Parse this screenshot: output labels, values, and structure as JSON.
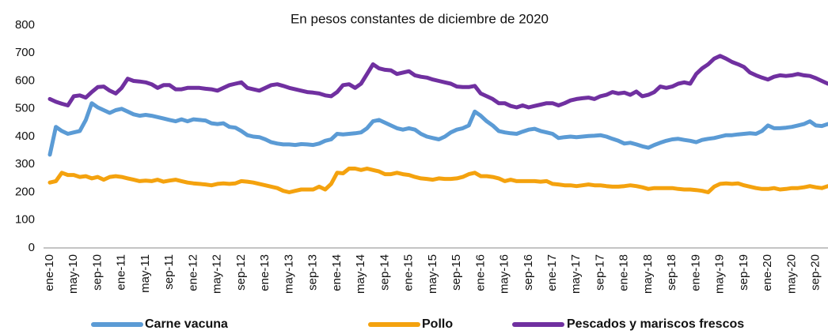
{
  "chart_data": {
    "type": "line",
    "subtitle": "En pesos constantes de diciembre de 2020",
    "categories": [
      "ene-10",
      null,
      null,
      null,
      "may-10",
      null,
      null,
      null,
      "sep-10",
      null,
      null,
      null,
      "ene-11",
      null,
      null,
      null,
      "may-11",
      null,
      null,
      null,
      "sep-11",
      null,
      null,
      null,
      "ene-12",
      null,
      null,
      null,
      "may-12",
      null,
      null,
      null,
      "sep-12",
      null,
      null,
      null,
      "ene-13",
      null,
      null,
      null,
      "may-13",
      null,
      null,
      null,
      "sep-13",
      null,
      null,
      null,
      "ene-14",
      null,
      null,
      null,
      "may-14",
      null,
      null,
      null,
      "sep-14",
      null,
      null,
      null,
      "ene-15",
      null,
      null,
      null,
      "may-15",
      null,
      null,
      null,
      "sep-15",
      null,
      null,
      null,
      "ene-16",
      null,
      null,
      null,
      "may-16",
      null,
      null,
      null,
      "sep-16",
      null,
      null,
      null,
      "ene-17",
      null,
      null,
      null,
      "may-17",
      null,
      null,
      null,
      "sep-17",
      null,
      null,
      null,
      "ene-18",
      null,
      null,
      null,
      "may-18",
      null,
      null,
      null,
      "sep-18",
      null,
      null,
      null,
      "ene-19",
      null,
      null,
      null,
      "may-19",
      null,
      null,
      null,
      "sep-19",
      null,
      null,
      null,
      "ene-20",
      null,
      null,
      null,
      "may-20",
      null,
      null,
      null,
      "sep-20",
      null,
      null
    ],
    "series": [
      {
        "name": "Carne vacuna",
        "color": "#5b9bd5",
        "values": [
          335,
          435,
          420,
          410,
          415,
          420,
          460,
          520,
          505,
          495,
          485,
          495,
          500,
          490,
          480,
          475,
          478,
          475,
          470,
          465,
          460,
          455,
          462,
          455,
          462,
          460,
          458,
          448,
          445,
          448,
          435,
          432,
          420,
          405,
          400,
          398,
          390,
          380,
          375,
          372,
          372,
          370,
          373,
          372,
          370,
          375,
          385,
          390,
          410,
          408,
          410,
          412,
          415,
          430,
          455,
          460,
          450,
          440,
          430,
          425,
          430,
          425,
          410,
          400,
          395,
          390,
          400,
          415,
          425,
          430,
          440,
          490,
          475,
          455,
          440,
          420,
          415,
          412,
          410,
          418,
          425,
          428,
          420,
          415,
          410,
          395,
          398,
          400,
          398,
          400,
          402,
          403,
          405,
          400,
          392,
          385,
          375,
          378,
          372,
          365,
          360,
          370,
          378,
          385,
          390,
          392,
          388,
          385,
          380,
          388,
          392,
          395,
          400,
          405,
          405,
          408,
          410,
          412,
          410,
          420,
          440,
          430,
          430,
          432,
          435,
          440,
          445,
          455,
          440,
          438,
          445
        ]
      },
      {
        "name": "Pollo",
        "color": "#f4a20e",
        "values": [
          235,
          240,
          270,
          262,
          262,
          255,
          258,
          250,
          255,
          245,
          255,
          258,
          255,
          250,
          245,
          240,
          242,
          240,
          245,
          238,
          242,
          245,
          240,
          235,
          232,
          230,
          228,
          225,
          230,
          232,
          230,
          232,
          240,
          238,
          235,
          230,
          225,
          220,
          215,
          205,
          200,
          205,
          210,
          210,
          210,
          220,
          210,
          230,
          270,
          268,
          285,
          285,
          280,
          285,
          280,
          275,
          265,
          265,
          270,
          265,
          262,
          255,
          250,
          248,
          245,
          250,
          248,
          248,
          250,
          255,
          265,
          270,
          258,
          258,
          255,
          250,
          240,
          245,
          240,
          240,
          240,
          240,
          238,
          240,
          230,
          228,
          225,
          225,
          222,
          225,
          228,
          225,
          225,
          222,
          220,
          220,
          222,
          225,
          222,
          218,
          212,
          215,
          215,
          215,
          215,
          212,
          210,
          210,
          208,
          205,
          200,
          220,
          230,
          232,
          230,
          232,
          225,
          220,
          215,
          212,
          212,
          215,
          210,
          212,
          215,
          215,
          218,
          222,
          218,
          215,
          222
        ]
      },
      {
        "name": "Pescados y mariscos frescos",
        "color": "#7030a0",
        "values": [
          535,
          525,
          518,
          512,
          545,
          548,
          540,
          560,
          578,
          580,
          565,
          555,
          575,
          608,
          600,
          598,
          595,
          588,
          575,
          585,
          585,
          570,
          570,
          575,
          575,
          575,
          572,
          570,
          565,
          575,
          585,
          590,
          595,
          575,
          570,
          565,
          575,
          585,
          588,
          582,
          575,
          570,
          565,
          560,
          558,
          555,
          548,
          545,
          560,
          585,
          588,
          575,
          590,
          625,
          660,
          645,
          640,
          638,
          625,
          630,
          635,
          620,
          615,
          612,
          605,
          600,
          595,
          590,
          580,
          578,
          578,
          582,
          555,
          545,
          535,
          520,
          520,
          510,
          505,
          512,
          505,
          510,
          515,
          520,
          520,
          512,
          520,
          530,
          535,
          538,
          540,
          535,
          545,
          550,
          560,
          555,
          558,
          550,
          562,
          545,
          550,
          560,
          580,
          575,
          580,
          590,
          595,
          590,
          625,
          645,
          660,
          680,
          690,
          680,
          668,
          660,
          650,
          630,
          620,
          612,
          605,
          615,
          620,
          618,
          620,
          625,
          620,
          618,
          610,
          600,
          590
        ]
      }
    ],
    "ylim": [
      0,
      800
    ],
    "yticks": [
      0,
      100,
      200,
      300,
      400,
      500,
      600,
      700,
      800
    ],
    "legend": "bottom",
    "grid": false
  }
}
